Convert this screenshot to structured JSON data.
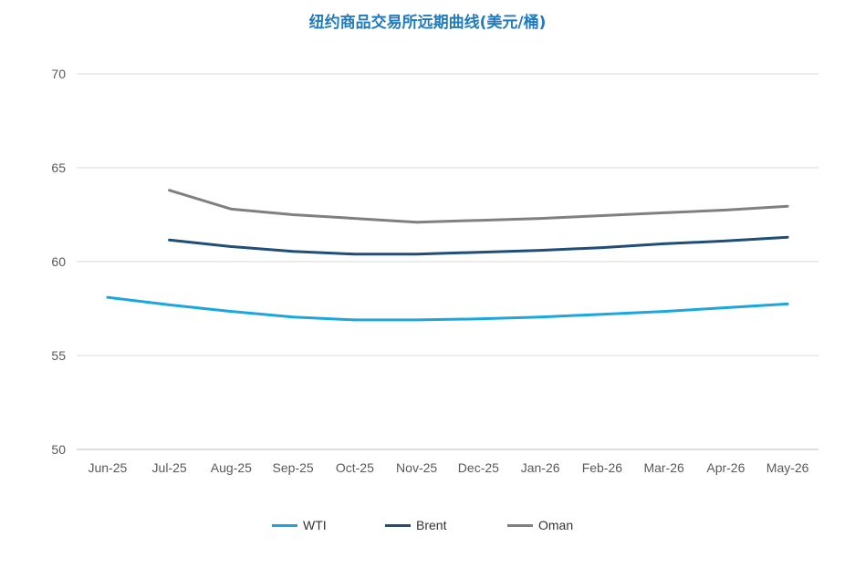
{
  "chart_data": {
    "type": "line",
    "title": "纽约商品交易所远期曲线(美元/桶)",
    "categories": [
      "Jun-25",
      "Jul-25",
      "Aug-25",
      "Sep-25",
      "Oct-25",
      "Nov-25",
      "Dec-25",
      "Jan-26",
      "Feb-26",
      "Mar-26",
      "Apr-26",
      "May-26"
    ],
    "ylim": [
      50,
      70
    ],
    "yticks": [
      50,
      55,
      60,
      65,
      70
    ],
    "grid": true,
    "legend_position": "bottom",
    "series": [
      {
        "name": "WTI",
        "color": "#1aa7df",
        "values": [
          58.1,
          57.7,
          57.35,
          57.05,
          56.9,
          56.9,
          56.95,
          57.05,
          57.2,
          57.35,
          57.55,
          57.75
        ]
      },
      {
        "name": "Brent",
        "color": "#1f4e79",
        "values": [
          null,
          61.15,
          60.8,
          60.55,
          60.4,
          60.4,
          60.5,
          60.6,
          60.75,
          60.95,
          61.1,
          61.3
        ]
      },
      {
        "name": "Oman",
        "color": "#808080",
        "values": [
          null,
          63.8,
          62.8,
          62.5,
          62.3,
          62.1,
          62.2,
          62.3,
          62.45,
          62.6,
          62.75,
          62.95
        ]
      }
    ]
  }
}
